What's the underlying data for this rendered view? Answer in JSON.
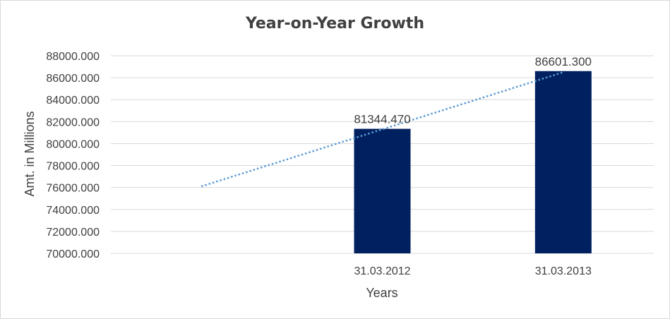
{
  "chart_data": {
    "type": "bar",
    "title": "Year-on-Year Growth",
    "xlabel": "Years",
    "ylabel": "Amt. in Millions",
    "categories": [
      "",
      "31.03.2012",
      "31.03.2013"
    ],
    "values": [
      null,
      81344.47,
      86601.3
    ],
    "data_labels": [
      "",
      "81344.470",
      "86601.300"
    ],
    "y_ticks": [
      "70000.000",
      "72000.000",
      "74000.000",
      "76000.000",
      "78000.000",
      "80000.000",
      "82000.000",
      "84000.000",
      "86000.000",
      "88000.000"
    ],
    "ylim": [
      70000,
      88000
    ],
    "y_step": 2000,
    "grid": true,
    "legend": "none",
    "trendline": {
      "style": "dotted",
      "type": "linear",
      "start_value": 76100,
      "end_value": 86500
    },
    "colors": {
      "bar": "#002060",
      "trendline": "#5b9bd5",
      "grid": "#d9d9d9",
      "text": "#404040"
    }
  }
}
